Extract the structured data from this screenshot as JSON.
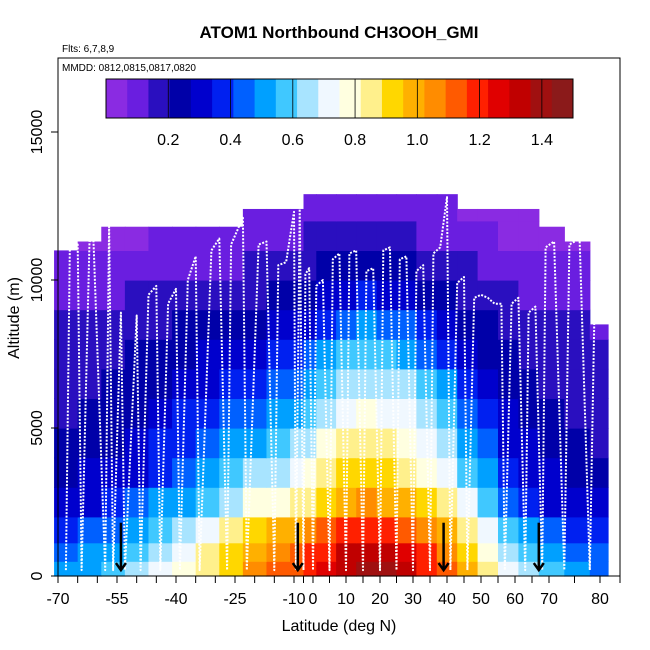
{
  "chart_data": {
    "type": "heatmap",
    "title": "ATOM1 Northbound CH3OOH_GMI",
    "annotations": {
      "flights": "Flts: 6,7,8,9",
      "dates": "MMDD: 0812,0815,0817,0820"
    },
    "xlabel": "Latitude (deg N)",
    "ylabel": "Altitude (m)",
    "xlim": [
      -70,
      85
    ],
    "ylim": [
      0,
      17500
    ],
    "xticks": [
      -70,
      -55,
      -40,
      -25,
      -10,
      0,
      10,
      20,
      30,
      40,
      50,
      60,
      70,
      80
    ],
    "xtick_labels": [
      "-70",
      "-55",
      "-40",
      "-25",
      "-10",
      "0",
      "10",
      "20",
      "30",
      "40",
      "50",
      "60",
      "70",
      "80"
    ],
    "xticks_minor": [
      -65,
      -60,
      -50,
      -45,
      -35,
      -30,
      -20,
      -15,
      -5,
      5,
      15,
      25,
      35,
      45,
      55,
      65,
      75,
      85
    ],
    "yticks": [
      0,
      5000,
      10000,
      15000
    ],
    "ytick_labels": [
      "0",
      "5000",
      "10000",
      "15000"
    ],
    "colorbar": {
      "vmin": 0.0,
      "vmax": 1.5,
      "ticks": [
        0.2,
        0.4,
        0.6,
        0.8,
        1.0,
        1.2,
        1.4
      ],
      "tick_labels": [
        "0.2",
        "0.4",
        "0.6",
        "0.8",
        "1.0",
        "1.2",
        "1.4"
      ],
      "colors": [
        "#8a2be2",
        "#6a1ee0",
        "#2a0fbf",
        "#0000a8",
        "#0000cd",
        "#0020f0",
        "#0060ff",
        "#00a0ff",
        "#40c8ff",
        "#a8e4ff",
        "#f0f8ff",
        "#ffffe0",
        "#fff08c",
        "#ffd700",
        "#ffb000",
        "#ff8c00",
        "#ff5a00",
        "#ff2000",
        "#e00000",
        "#c00000",
        "#a01010",
        "#8b1a1a"
      ]
    },
    "field": {
      "lat_centers": [
        -68,
        -62,
        -56,
        -50,
        -44,
        -38,
        -32,
        -26,
        -20,
        -14,
        -8,
        -2,
        4,
        10,
        16,
        22,
        28,
        34,
        40,
        46,
        52,
        58,
        64,
        70,
        76,
        80
      ],
      "alt_centers": [
        250,
        750,
        1500,
        2500,
        3500,
        4500,
        5500,
        6500,
        7500,
        8500,
        9500,
        10500,
        11500,
        12500
      ],
      "top_altitude": [
        11000,
        11300,
        11800,
        11800,
        11800,
        11800,
        11800,
        11800,
        12400,
        12400,
        12400,
        12900,
        12900,
        12900,
        12900,
        12900,
        12900,
        12900,
        12900,
        12400,
        12400,
        12400,
        12400,
        11800,
        11300,
        8500
      ],
      "values": [
        [
          0.5,
          0.52,
          0.56,
          0.62,
          0.7,
          0.78,
          0.86,
          0.95,
          1.05,
          1.12,
          1.15,
          1.18,
          1.25,
          1.35,
          1.4,
          1.38,
          1.32,
          1.22,
          1.12,
          0.98,
          0.85,
          0.72,
          0.62,
          0.55,
          0.5,
          0.45
        ],
        [
          0.45,
          0.48,
          0.52,
          0.58,
          0.66,
          0.74,
          0.82,
          0.92,
          1.02,
          1.08,
          1.12,
          1.16,
          1.22,
          1.3,
          1.36,
          1.34,
          1.28,
          1.18,
          1.08,
          0.95,
          0.8,
          0.68,
          0.56,
          0.5,
          0.46,
          0.42
        ],
        [
          0.4,
          0.42,
          0.46,
          0.52,
          0.58,
          0.66,
          0.74,
          0.85,
          0.95,
          1.0,
          1.02,
          1.05,
          1.1,
          1.18,
          1.22,
          1.2,
          1.15,
          1.08,
          1.0,
          0.88,
          0.72,
          0.58,
          0.48,
          0.42,
          0.4,
          0.38
        ],
        [
          0.32,
          0.34,
          0.38,
          0.42,
          0.48,
          0.54,
          0.6,
          0.68,
          0.76,
          0.8,
          0.82,
          0.86,
          0.92,
          1.0,
          1.04,
          1.02,
          0.98,
          0.92,
          0.85,
          0.72,
          0.58,
          0.46,
          0.38,
          0.34,
          0.32,
          0.3
        ],
        [
          0.26,
          0.28,
          0.3,
          0.34,
          0.4,
          0.46,
          0.5,
          0.56,
          0.62,
          0.66,
          0.7,
          0.76,
          0.84,
          0.9,
          0.92,
          0.9,
          0.86,
          0.8,
          0.72,
          0.6,
          0.48,
          0.38,
          0.32,
          0.28,
          0.26,
          0.24
        ],
        [
          0.22,
          0.24,
          0.26,
          0.3,
          0.35,
          0.4,
          0.44,
          0.48,
          0.52,
          0.56,
          0.62,
          0.68,
          0.76,
          0.82,
          0.84,
          0.82,
          0.78,
          0.72,
          0.64,
          0.52,
          0.42,
          0.34,
          0.28,
          0.24,
          0.22,
          0.2
        ],
        [
          0.2,
          0.22,
          0.24,
          0.27,
          0.31,
          0.35,
          0.38,
          0.42,
          0.45,
          0.48,
          0.54,
          0.6,
          0.68,
          0.74,
          0.76,
          0.74,
          0.7,
          0.64,
          0.56,
          0.46,
          0.38,
          0.3,
          0.25,
          0.22,
          0.2,
          0.18
        ],
        [
          0.18,
          0.2,
          0.22,
          0.24,
          0.27,
          0.3,
          0.33,
          0.36,
          0.39,
          0.42,
          0.46,
          0.52,
          0.6,
          0.66,
          0.68,
          0.66,
          0.62,
          0.56,
          0.48,
          0.4,
          0.32,
          0.26,
          0.22,
          0.2,
          0.18,
          0.17
        ],
        [
          0.16,
          0.18,
          0.19,
          0.21,
          0.24,
          0.26,
          0.28,
          0.3,
          0.32,
          0.35,
          0.38,
          0.42,
          0.5,
          0.56,
          0.58,
          0.56,
          0.52,
          0.46,
          0.4,
          0.34,
          0.27,
          0.22,
          0.19,
          0.17,
          0.16,
          0.15
        ],
        [
          0.14,
          0.15,
          0.17,
          0.18,
          0.2,
          0.22,
          0.23,
          0.25,
          0.27,
          0.29,
          0.31,
          0.34,
          0.4,
          0.46,
          0.48,
          0.46,
          0.42,
          0.37,
          0.32,
          0.27,
          0.22,
          0.19,
          0.16,
          0.15,
          0.14,
          0.13
        ],
        [
          0.11,
          0.12,
          0.13,
          0.14,
          0.15,
          0.16,
          0.17,
          0.18,
          0.19,
          0.21,
          0.23,
          0.26,
          0.3,
          0.34,
          0.36,
          0.34,
          0.31,
          0.27,
          0.24,
          0.2,
          0.17,
          0.14,
          0.12,
          0.11,
          0.1,
          0.1
        ],
        [
          0.07,
          0.08,
          0.09,
          0.1,
          0.11,
          0.12,
          0.12,
          0.13,
          0.14,
          0.15,
          0.17,
          0.19,
          0.22,
          0.24,
          0.25,
          0.24,
          0.22,
          0.19,
          0.17,
          0.14,
          0.12,
          0.1,
          0.08,
          0.07,
          0.07,
          0.06
        ],
        [
          0.04,
          0.04,
          0.05,
          0.06,
          0.07,
          0.08,
          0.08,
          0.09,
          0.1,
          0.11,
          0.12,
          0.14,
          0.16,
          0.17,
          0.17,
          0.16,
          0.15,
          0.13,
          0.11,
          0.09,
          0.07,
          0.06,
          0.05,
          0.04,
          0.04,
          0.04
        ],
        [
          0.03,
          0.03,
          0.03,
          0.03,
          0.04,
          0.04,
          0.05,
          0.06,
          0.07,
          0.08,
          0.09,
          0.1,
          0.11,
          0.12,
          0.12,
          0.11,
          0.1,
          0.09,
          0.08,
          0.06,
          0.05,
          0.04,
          0.03,
          0.03,
          0.03,
          0.03
        ]
      ]
    },
    "flight_track": {
      "lat": [
        -68,
        -67,
        -65,
        -64,
        -62,
        -61,
        -58,
        -57,
        -56,
        -54,
        -53,
        -50,
        -49,
        -47,
        -45,
        -44,
        -42,
        -40,
        -39,
        -37,
        -35,
        -34,
        -31,
        -29,
        -27,
        -26,
        -24,
        -23,
        -22,
        -19,
        -17,
        -15,
        -14,
        -12,
        -10,
        -9,
        -7,
        -5,
        -4,
        -2,
        0,
        1,
        3,
        5,
        6,
        8,
        10,
        11,
        13,
        15,
        16,
        18,
        20,
        21,
        23,
        25,
        26,
        28,
        30,
        31,
        33,
        35,
        36,
        38,
        40,
        41,
        43,
        45,
        46,
        48,
        50,
        52,
        54,
        56,
        57,
        59,
        61,
        63,
        64,
        66,
        68,
        69,
        71,
        73,
        74,
        76,
        78,
        79
      ],
      "alt": [
        200,
        11000,
        11200,
        200,
        11300,
        11400,
        200,
        11800,
        200,
        8900,
        200,
        8800,
        200,
        9500,
        9800,
        200,
        9200,
        9700,
        200,
        10000,
        10800,
        200,
        11000,
        11400,
        200,
        11200,
        11800,
        12100,
        200,
        11200,
        11300,
        200,
        10500,
        10600,
        12300,
        200,
        12400,
        200,
        10200,
        10400,
        200,
        9800,
        10000,
        200,
        10700,
        10900,
        200,
        10900,
        11000,
        200,
        10300,
        10400,
        200,
        11000,
        11100,
        200,
        10700,
        10800,
        200,
        10300,
        10500,
        200,
        10900,
        11100,
        12800,
        200,
        9900,
        10100,
        200,
        9400,
        9500,
        9400,
        9200,
        9200,
        200,
        9200,
        9400,
        200,
        8900,
        9100,
        200,
        11100,
        11300,
        200,
        11200,
        11400,
        200,
        9800
      ]
    },
    "profile_markers": {
      "lat": [
        -54,
        -8,
        39,
        67
      ],
      "alt": [
        800,
        800,
        800,
        800
      ]
    }
  }
}
